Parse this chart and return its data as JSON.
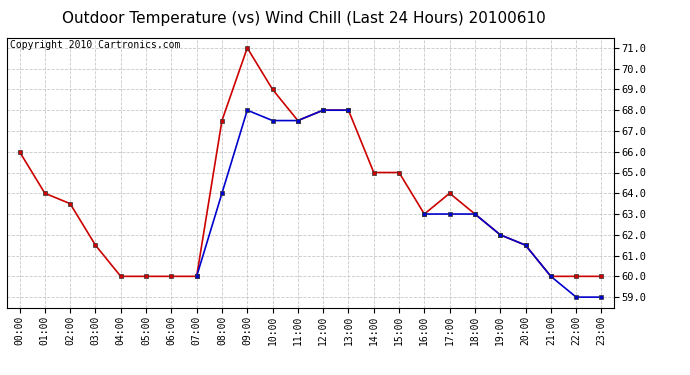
{
  "title": "Outdoor Temperature (vs) Wind Chill (Last 24 Hours) 20100610",
  "copyright": "Copyright 2010 Cartronics.com",
  "hours": [
    "00:00",
    "01:00",
    "02:00",
    "03:00",
    "04:00",
    "05:00",
    "06:00",
    "07:00",
    "08:00",
    "09:00",
    "10:00",
    "11:00",
    "12:00",
    "13:00",
    "14:00",
    "15:00",
    "16:00",
    "17:00",
    "18:00",
    "19:00",
    "20:00",
    "21:00",
    "22:00",
    "23:00"
  ],
  "temp_x": [
    0,
    1,
    2,
    3,
    4,
    5,
    6,
    7,
    8,
    9,
    10,
    11,
    12,
    13,
    14,
    15,
    16,
    17,
    18,
    19,
    20,
    21,
    22,
    23
  ],
  "temp_y": [
    66.0,
    64.0,
    63.5,
    61.5,
    60.0,
    60.0,
    60.0,
    60.0,
    67.5,
    71.0,
    69.0,
    67.5,
    68.0,
    68.0,
    65.0,
    65.0,
    63.0,
    64.0,
    63.0,
    62.0,
    61.5,
    60.0,
    60.0,
    60.0
  ],
  "chill_x": [
    7,
    8,
    9,
    10,
    11,
    12,
    13,
    16,
    17,
    18,
    19,
    20,
    21,
    22,
    23
  ],
  "chill_y": [
    60.0,
    64.0,
    68.0,
    67.5,
    67.5,
    68.0,
    68.0,
    63.0,
    63.0,
    63.0,
    62.0,
    61.5,
    60.0,
    59.0,
    59.0
  ],
  "temp_color": "#cc0000",
  "chill_color": "#0000cc",
  "ylim": [
    58.5,
    71.5
  ],
  "yticks": [
    59.0,
    60.0,
    61.0,
    62.0,
    63.0,
    64.0,
    65.0,
    66.0,
    67.0,
    68.0,
    69.0,
    70.0,
    71.0
  ],
  "bg_color": "#ffffff",
  "plot_bg_color": "#ffffff",
  "grid_color": "#bbbbbb",
  "title_fontsize": 11,
  "copyright_fontsize": 7
}
